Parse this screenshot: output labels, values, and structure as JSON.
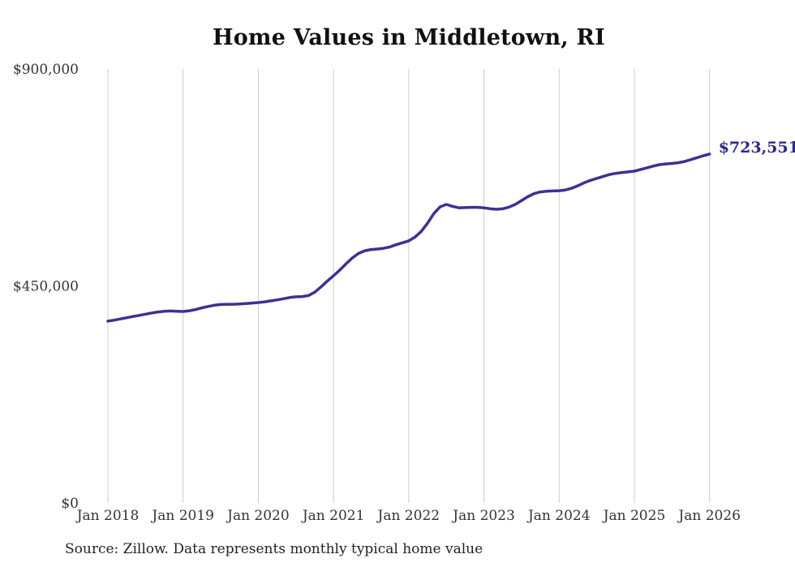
{
  "page": {
    "title": "Home Values in Middletown, RI",
    "source_note": "Source: Zillow. Data represents monthly typical home value"
  },
  "chart_data": {
    "type": "line",
    "title": "Home Values in Middletown, RI",
    "unit": "USD",
    "legend": "none",
    "grid": "vertical-only",
    "x_axis": {
      "interval": "monthly",
      "start": "Jan 2018",
      "end": "Jan 2026",
      "ticks": [
        {
          "label": "Jan 2018",
          "month_index": 0
        },
        {
          "label": "Jan 2019",
          "month_index": 12
        },
        {
          "label": "Jan 2020",
          "month_index": 24
        },
        {
          "label": "Jan 2021",
          "month_index": 36
        },
        {
          "label": "Jan 2022",
          "month_index": 48
        },
        {
          "label": "Jan 2023",
          "month_index": 60
        },
        {
          "label": "Jan 2024",
          "month_index": 72
        },
        {
          "label": "Jan 2025",
          "month_index": 84
        },
        {
          "label": "Jan 2026",
          "month_index": 96
        }
      ]
    },
    "y_axis": {
      "min": 0,
      "max": 900000,
      "ticks": [
        {
          "value": 900000,
          "label": "$900,000"
        },
        {
          "value": 450000,
          "label": "$450,000"
        },
        {
          "value": 0,
          "label": "$0"
        }
      ]
    },
    "series": [
      {
        "name": "Monthly typical home value",
        "values": [
          377000,
          379000,
          381500,
          384000,
          386500,
          389000,
          391500,
          394000,
          396000,
          397500,
          398000,
          397500,
          397000,
          398500,
          401000,
          404500,
          407500,
          410000,
          411500,
          412000,
          412000,
          412500,
          413500,
          414500,
          415500,
          417000,
          419000,
          421000,
          423500,
          426000,
          427500,
          428000,
          430000,
          437000,
          448000,
          460000,
          471000,
          483000,
          496000,
          508000,
          517500,
          523000,
          525500,
          526500,
          528000,
          531000,
          535500,
          539500,
          543500,
          551500,
          563000,
          580000,
          600000,
          614000,
          619000,
          615000,
          612000,
          612500,
          613000,
          613000,
          612000,
          610000,
          609000,
          610000,
          613500,
          619000,
          627000,
          635000,
          641500,
          645000,
          646500,
          647000,
          647500,
          649000,
          652500,
          658000,
          664000,
          669000,
          673000,
          677000,
          681000,
          683500,
          685000,
          686500,
          688000,
          691500,
          695000,
          698500,
          701500,
          703000,
          704000,
          705500,
          708000,
          712000,
          716000,
          720000,
          723551
        ]
      }
    ],
    "end_label": "$723,551",
    "final_value": 723551,
    "colors": {
      "line": "#3b3294",
      "end_label": "#2d2a87",
      "grid": "#cccccc",
      "tick_text": "#333333",
      "title_text": "#111111",
      "source_text": "#222222",
      "background": "#ffffff"
    }
  }
}
